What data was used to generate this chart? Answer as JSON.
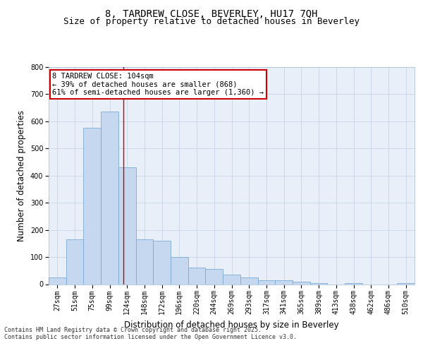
{
  "title_line1": "8, TARDREW CLOSE, BEVERLEY, HU17 7QH",
  "title_line2": "Size of property relative to detached houses in Beverley",
  "xlabel": "Distribution of detached houses by size in Beverley",
  "ylabel": "Number of detached properties",
  "categories": [
    "27sqm",
    "51sqm",
    "75sqm",
    "99sqm",
    "124sqm",
    "148sqm",
    "172sqm",
    "196sqm",
    "220sqm",
    "244sqm",
    "269sqm",
    "293sqm",
    "317sqm",
    "341sqm",
    "365sqm",
    "389sqm",
    "413sqm",
    "438sqm",
    "462sqm",
    "486sqm",
    "510sqm"
  ],
  "bar_heights": [
    25,
    165,
    575,
    635,
    430,
    165,
    160,
    100,
    60,
    55,
    35,
    25,
    15,
    15,
    8,
    5,
    0,
    3,
    0,
    0,
    5
  ],
  "bar_color": "#c5d8f0",
  "bar_edge_color": "#7baad4",
  "bg_color": "#e8eff9",
  "grid_color": "#c8d4e5",
  "vline_x": 3.8,
  "vline_color": "#cc0000",
  "annotation_text": "8 TARDREW CLOSE: 104sqm\n← 39% of detached houses are smaller (868)\n61% of semi-detached houses are larger (1,360) →",
  "annotation_box_color": "#cc0000",
  "ylim": [
    0,
    800
  ],
  "yticks": [
    0,
    100,
    200,
    300,
    400,
    500,
    600,
    700,
    800
  ],
  "footer_line1": "Contains HM Land Registry data © Crown copyright and database right 2025.",
  "footer_line2": "Contains public sector information licensed under the Open Government Licence v3.0.",
  "title_fontsize": 10,
  "subtitle_fontsize": 9,
  "tick_fontsize": 7,
  "label_fontsize": 8.5,
  "annotation_fontsize": 7.5,
  "footer_fontsize": 6
}
